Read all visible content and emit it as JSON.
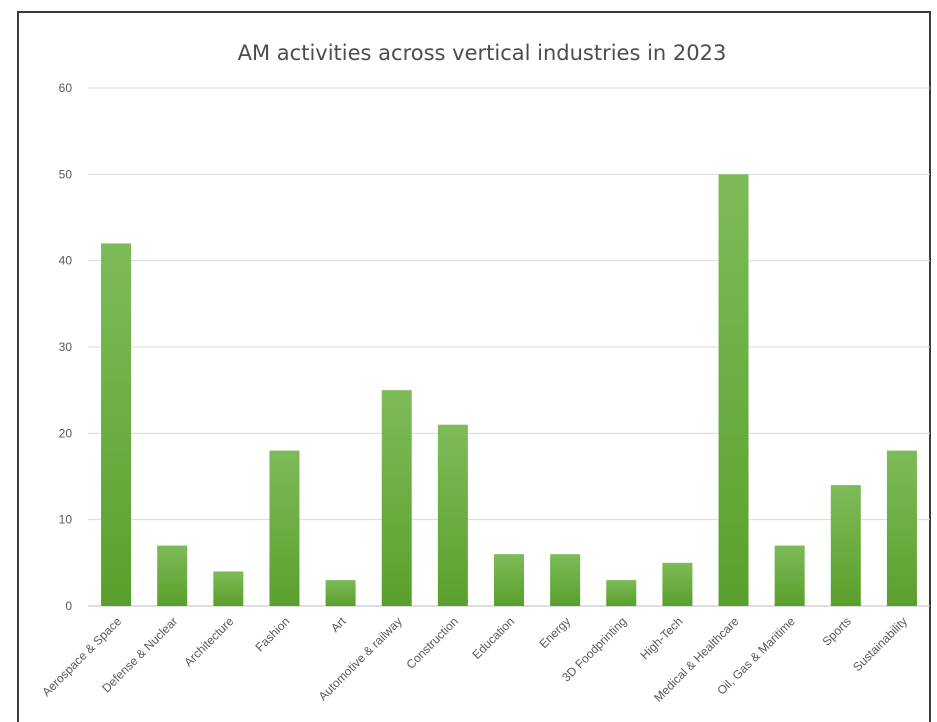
{
  "chart_data": {
    "type": "bar",
    "title": "AM activities across vertical industries in 2023",
    "xlabel": "",
    "ylabel": "",
    "ylim": [
      0,
      60
    ],
    "yticks": [
      0,
      10,
      20,
      30,
      40,
      50,
      60
    ],
    "grid": true,
    "legend": "none",
    "bar_color": "#6db33f",
    "categories": [
      "Aerospace & Space",
      "Defense & Nuclear",
      "Architecture",
      "Fashion",
      "Art",
      "Automotive & railway",
      "Construction",
      "Education",
      "Energy",
      "3D Foodprinting",
      "High-Tech",
      "Medical & Healthcare",
      "Oil, Gas & Maritime",
      "Sports",
      "Sustainability"
    ],
    "values": [
      42,
      7,
      4,
      18,
      3,
      25,
      21,
      6,
      6,
      3,
      5,
      50,
      7,
      14,
      18
    ]
  }
}
